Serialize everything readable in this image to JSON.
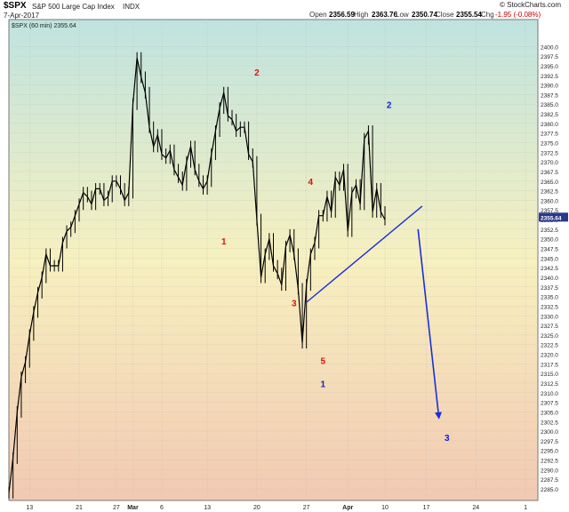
{
  "header": {
    "symbol": "$SPX",
    "name": "S&P 500 Large Cap Index",
    "exchange": "INDX",
    "date": "7-Apr-2017",
    "copyright": "© StockCharts.com",
    "open_label": "Open",
    "open": "2356.59",
    "high_label": "High",
    "high": "2363.76",
    "low_label": "Low",
    "low": "2350.74",
    "close_label": "Close",
    "close": "2355.54",
    "chg_label": "Chg",
    "chg": "-1.95 (-0.08%)"
  },
  "legend": {
    "text": "$SPX (60 min) 2355.64"
  },
  "last_price_label": "2355.64",
  "colors": {
    "candle": "#000000",
    "wave_red": "#dd1111",
    "wave_blue": "#1122cc",
    "trendline": "#1a2fdd",
    "arrow": "#1a2fdd",
    "bg_top": "#bfe3df",
    "bg_mid": "#f7f0bf",
    "bg_bottom": "#f2c9b2",
    "grid": "#b8b8b8",
    "price_tag": "#2a3a8a"
  },
  "chart_data": {
    "type": "line",
    "title": "$SPX (60 min)",
    "xlabel": "",
    "ylabel": "",
    "ylim": [
      2282,
      2407
    ],
    "yticks": [
      2285.0,
      2287.5,
      2290.0,
      2292.5,
      2295.0,
      2297.5,
      2300.0,
      2302.5,
      2305.0,
      2307.5,
      2310.0,
      2312.5,
      2315.0,
      2317.5,
      2320.0,
      2322.5,
      2325.0,
      2327.5,
      2330.0,
      2332.5,
      2335.0,
      2337.5,
      2340.0,
      2342.5,
      2345.0,
      2347.5,
      2350.0,
      2352.5,
      2355.0,
      2357.5,
      2360.0,
      2362.5,
      2365.0,
      2367.5,
      2370.0,
      2372.5,
      2375.0,
      2377.5,
      2380.0,
      2382.5,
      2385.0,
      2387.5,
      2390.0,
      2392.5,
      2395.0,
      2397.5,
      2400.0
    ],
    "xticks": [
      {
        "label": "13",
        "x": 5
      },
      {
        "label": "21",
        "x": 17
      },
      {
        "label": "27",
        "x": 26
      },
      {
        "label": "Mar",
        "x": 30
      },
      {
        "label": "6",
        "x": 37
      },
      {
        "label": "13",
        "x": 48
      },
      {
        "label": "20",
        "x": 60
      },
      {
        "label": "27",
        "x": 72
      },
      {
        "label": "Apr",
        "x": 82
      },
      {
        "label": "10",
        "x": 91
      },
      {
        "label": "17",
        "x": 101
      },
      {
        "label": "24",
        "x": 113
      },
      {
        "label": "1",
        "x": 125
      }
    ],
    "series": [
      {
        "x": [
          0,
          1,
          2,
          3,
          4,
          5,
          6,
          7,
          8,
          9,
          10,
          11,
          12,
          13,
          14,
          15,
          16,
          17,
          18,
          19,
          20,
          21,
          22,
          23,
          24,
          25,
          26,
          27,
          28,
          29,
          30,
          31,
          32,
          33,
          34,
          35,
          36,
          37,
          38,
          39,
          40,
          41,
          42,
          43,
          44,
          45,
          46,
          47,
          48,
          49,
          50,
          51,
          52,
          53,
          54,
          55,
          56,
          57,
          58,
          59,
          60,
          61,
          62,
          63,
          64,
          65,
          66,
          67,
          68,
          69,
          70,
          71,
          72,
          73,
          74,
          75,
          76,
          77,
          78,
          79,
          80,
          81,
          82,
          83,
          84,
          85,
          86,
          87,
          88,
          89,
          90,
          91
        ],
        "values": [
          2284,
          2293,
          2305,
          2314,
          2318,
          2325,
          2331,
          2336,
          2340,
          2346,
          2343,
          2343,
          2343,
          2349,
          2352,
          2353,
          2356,
          2359,
          2362,
          2361,
          2359,
          2363,
          2363,
          2360,
          2361,
          2365,
          2365,
          2363,
          2360,
          2362,
          2385,
          2397,
          2392,
          2388,
          2379,
          2374,
          2377,
          2372,
          2371,
          2373,
          2368,
          2366,
          2364,
          2370,
          2374,
          2368,
          2365,
          2363,
          2365,
          2372,
          2378,
          2384,
          2388,
          2382,
          2381,
          2378,
          2379,
          2379,
          2372,
          2370,
          2355,
          2340,
          2346,
          2350,
          2343,
          2341,
          2338,
          2348,
          2351,
          2346,
          2337,
          2323,
          2338,
          2346,
          2349,
          2356,
          2356,
          2361,
          2357,
          2366,
          2364,
          2368,
          2352,
          2362,
          2364,
          2359,
          2376,
          2378,
          2357,
          2363,
          2357,
          2355
        ]
      }
    ],
    "annotations": [
      {
        "text": "1",
        "x": 52,
        "y": 2348.5,
        "color": "red"
      },
      {
        "text": "2",
        "x": 60,
        "y": 2392.5,
        "color": "red"
      },
      {
        "text": "3",
        "x": 69,
        "y": 2332.5,
        "color": "red"
      },
      {
        "text": "4",
        "x": 73,
        "y": 2364.0,
        "color": "red"
      },
      {
        "text": "5",
        "x": 76,
        "y": 2317.5,
        "color": "red"
      },
      {
        "text": "1",
        "x": 76,
        "y": 2311.5,
        "color": "blue"
      },
      {
        "text": "2",
        "x": 92,
        "y": 2384.0,
        "color": "blue"
      },
      {
        "text": "3",
        "x": 106,
        "y": 2297.5,
        "color": "blue"
      }
    ],
    "trendline": {
      "x1": 72,
      "y1": 2333.5,
      "x2": 100,
      "y2": 2358.5
    },
    "arrow": {
      "x1": 99,
      "y1": 2352.5,
      "x2": 104,
      "y2": 2304.0
    },
    "last_price": 2355.64
  }
}
